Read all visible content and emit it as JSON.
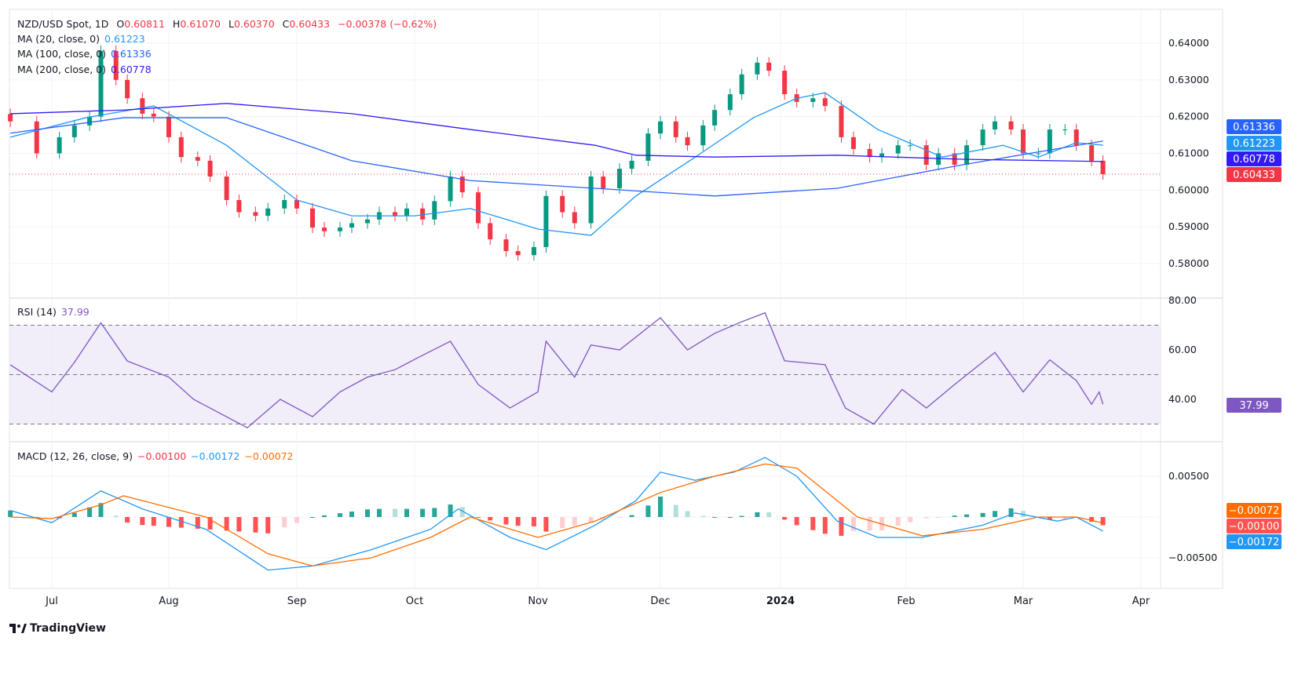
{
  "header": {
    "symbol": "NZD/USD Spot, 1D",
    "open_label": "O",
    "open": "0.60811",
    "high_label": "H",
    "high": "0.61070",
    "low_label": "L",
    "low": "0.60370",
    "close_label": "C",
    "close": "0.60433",
    "change": "−0.00378 (−0.62%)",
    "ma20_label": "MA (20, close, 0)",
    "ma20_value": "0.61223",
    "ma100_label": "MA (100, close, 0)",
    "ma100_value": "0.61336",
    "ma200_label": "MA (200, close, 0)",
    "ma200_value": "0.60778",
    "rsi_label": "RSI (14)",
    "rsi_value": "37.99",
    "macd_label": "MACD (12, 26, close, 9)",
    "macd_hist": "−0.00100",
    "macd_value": "−0.00172",
    "macd_signal": "−0.00072"
  },
  "logo": "TradingView",
  "colors": {
    "up": "#089981",
    "down": "#f23645",
    "ma20": "#2196f3",
    "ma100": "#2962ff",
    "ma200": "#311bf5",
    "rsi": "#7e57c2",
    "macd": "#2196f3",
    "signal": "#ff6d00"
  },
  "chart_data": [
    {
      "type": "candlestick",
      "pane": "price",
      "ylim": [
        0.575,
        0.642
      ],
      "y_ticks": [
        "0.64000",
        "0.63000",
        "0.62000",
        "0.61000",
        "0.60000",
        "0.59000",
        "0.58000"
      ],
      "x_ticks": [
        "Jul",
        "Aug",
        "Sep",
        "Oct",
        "Nov",
        "Dec",
        "2024",
        "Feb",
        "Mar",
        "Apr"
      ],
      "last_price_labels": [
        "0.61336",
        "0.61223",
        "0.60778",
        "0.60433"
      ],
      "closes": [
        [
          "2023-06-20",
          0.6187
        ],
        [
          "2023-06-27",
          0.61
        ],
        [
          "2023-07-03",
          0.6144
        ],
        [
          "2023-07-07",
          0.6176
        ],
        [
          "2023-07-11",
          0.62
        ],
        [
          "2023-07-14",
          0.6379
        ],
        [
          "2023-07-18",
          0.63
        ],
        [
          "2023-07-21",
          0.625
        ],
        [
          "2023-07-25",
          0.6208
        ],
        [
          "2023-07-28",
          0.62
        ],
        [
          "2023-08-01",
          0.6144
        ],
        [
          "2023-08-04",
          0.609
        ],
        [
          "2023-08-08",
          0.608
        ],
        [
          "2023-08-11",
          0.6037
        ],
        [
          "2023-08-15",
          0.5973
        ],
        [
          "2023-08-18",
          0.594
        ],
        [
          "2023-08-22",
          0.593
        ],
        [
          "2023-08-25",
          0.595
        ],
        [
          "2023-08-29",
          0.5973
        ],
        [
          "2023-09-01",
          0.595
        ],
        [
          "2023-09-05",
          0.5898
        ],
        [
          "2023-09-08",
          0.5888
        ],
        [
          "2023-09-12",
          0.5898
        ],
        [
          "2023-09-15",
          0.591
        ],
        [
          "2023-09-19",
          0.592
        ],
        [
          "2023-09-22",
          0.594
        ],
        [
          "2023-09-26",
          0.593
        ],
        [
          "2023-09-29",
          0.595
        ],
        [
          "2023-10-03",
          0.592
        ],
        [
          "2023-10-06",
          0.597
        ],
        [
          "2023-10-10",
          0.6037
        ],
        [
          "2023-10-13",
          0.5994
        ],
        [
          "2023-10-17",
          0.591
        ],
        [
          "2023-10-20",
          0.5866
        ],
        [
          "2023-10-24",
          0.5834
        ],
        [
          "2023-10-27",
          0.5823
        ],
        [
          "2023-10-31",
          0.5845
        ],
        [
          "2023-11-03",
          0.5984
        ],
        [
          "2023-11-07",
          0.594
        ],
        [
          "2023-11-10",
          0.591
        ],
        [
          "2023-11-14",
          0.6037
        ],
        [
          "2023-11-17",
          0.6005
        ],
        [
          "2023-11-21",
          0.6058
        ],
        [
          "2023-11-24",
          0.608
        ],
        [
          "2023-11-28",
          0.6154
        ],
        [
          "2023-12-01",
          0.6187
        ],
        [
          "2023-12-05",
          0.6144
        ],
        [
          "2023-12-08",
          0.6122
        ],
        [
          "2023-12-12",
          0.6176
        ],
        [
          "2023-12-15",
          0.6218
        ],
        [
          "2023-12-19",
          0.6261
        ],
        [
          "2023-12-22",
          0.6315
        ],
        [
          "2023-12-26",
          0.6347
        ],
        [
          "2023-12-29",
          0.6325
        ],
        [
          "2024-01-02",
          0.6261
        ],
        [
          "2024-01-05",
          0.624
        ],
        [
          "2024-01-09",
          0.625
        ],
        [
          "2024-01-12",
          0.6229
        ],
        [
          "2024-01-16",
          0.6144
        ],
        [
          "2024-01-19",
          0.6112
        ],
        [
          "2024-01-23",
          0.609
        ],
        [
          "2024-01-26",
          0.61
        ],
        [
          "2024-01-30",
          0.6122
        ],
        [
          "2024-02-02",
          0.6122
        ],
        [
          "2024-02-06",
          0.6069
        ],
        [
          "2024-02-09",
          0.61
        ],
        [
          "2024-02-13",
          0.6069
        ],
        [
          "2024-02-16",
          0.6122
        ],
        [
          "2024-02-20",
          0.6165
        ],
        [
          "2024-02-23",
          0.6187
        ],
        [
          "2024-02-27",
          0.6165
        ],
        [
          "2024-03-01",
          0.61
        ],
        [
          "2024-03-05",
          0.61
        ],
        [
          "2024-03-08",
          0.6165
        ],
        [
          "2024-03-12",
          0.6165
        ],
        [
          "2024-03-15",
          0.6122
        ],
        [
          "2024-03-19",
          0.608
        ],
        [
          "2024-03-22",
          0.60433
        ]
      ],
      "series": [
        {
          "name": "MA (20, close, 0)",
          "points": [
            [
              "2023-06-20",
              0.6144
            ],
            [
              "2023-07-10",
              0.6197
            ],
            [
              "2023-07-28",
              0.6229
            ],
            [
              "2023-08-15",
              0.6122
            ],
            [
              "2023-09-01",
              0.5973
            ],
            [
              "2023-09-15",
              0.593
            ],
            [
              "2023-10-01",
              0.593
            ],
            [
              "2023-10-15",
              0.595
            ],
            [
              "2023-11-01",
              0.5894
            ],
            [
              "2023-11-14",
              0.5877
            ],
            [
              "2023-11-25",
              0.5984
            ],
            [
              "2023-12-10",
              0.609
            ],
            [
              "2023-12-25",
              0.6197
            ],
            [
              "2024-01-05",
              0.625
            ],
            [
              "2024-01-12",
              0.6265
            ],
            [
              "2024-01-25",
              0.6165
            ],
            [
              "2024-02-10",
              0.609
            ],
            [
              "2024-02-25",
              0.6122
            ],
            [
              "2024-03-05",
              0.609
            ],
            [
              "2024-03-15",
              0.6129
            ],
            [
              "2024-03-22",
              0.61223
            ]
          ]
        },
        {
          "name": "MA (100, close, 0)",
          "points": [
            [
              "2023-06-20",
              0.6155
            ],
            [
              "2023-07-20",
              0.6197
            ],
            [
              "2023-08-15",
              0.6197
            ],
            [
              "2023-09-15",
              0.608
            ],
            [
              "2023-10-15",
              0.6026
            ],
            [
              "2023-11-15",
              0.6005
            ],
            [
              "2023-12-15",
              0.5984
            ],
            [
              "2024-01-15",
              0.6005
            ],
            [
              "2024-02-15",
              0.6069
            ],
            [
              "2024-03-22",
              0.61336
            ]
          ]
        },
        {
          "name": "MA (200, close, 0)",
          "points": [
            [
              "2023-06-20",
              0.6208
            ],
            [
              "2023-07-20",
              0.6218
            ],
            [
              "2023-08-15",
              0.6236
            ],
            [
              "2023-09-15",
              0.6208
            ],
            [
              "2023-10-15",
              0.6165
            ],
            [
              "2023-11-15",
              0.6122
            ],
            [
              "2023-11-25",
              0.6095
            ],
            [
              "2023-12-15",
              0.609
            ],
            [
              "2024-01-15",
              0.6095
            ],
            [
              "2024-02-15",
              0.6084
            ],
            [
              "2024-03-22",
              0.60778
            ]
          ]
        }
      ]
    },
    {
      "type": "line",
      "pane": "rsi",
      "ylim": [
        24,
        83
      ],
      "y_ticks": [
        "80.00",
        "60.00",
        "40.00"
      ],
      "bands": [
        70,
        50,
        30
      ],
      "series": [
        {
          "name": "RSI (14)",
          "points": [
            [
              "2023-06-20",
              54
            ],
            [
              "2023-07-01",
              43
            ],
            [
              "2023-07-07",
              55
            ],
            [
              "2023-07-14",
              71
            ],
            [
              "2023-07-21",
              55.5
            ],
            [
              "2023-08-01",
              49
            ],
            [
              "2023-08-07",
              40
            ],
            [
              "2023-08-20",
              28.5
            ],
            [
              "2023-08-28",
              40
            ],
            [
              "2023-09-05",
              33
            ],
            [
              "2023-09-12",
              43
            ],
            [
              "2023-09-19",
              49
            ],
            [
              "2023-09-26",
              52
            ],
            [
              "2023-10-02",
              57
            ],
            [
              "2023-10-10",
              63.5
            ],
            [
              "2023-10-17",
              46
            ],
            [
              "2023-10-25",
              36.5
            ],
            [
              "2023-11-01",
              43
            ],
            [
              "2023-11-03",
              63.5
            ],
            [
              "2023-11-10",
              49
            ],
            [
              "2023-11-14",
              62
            ],
            [
              "2023-11-21",
              60
            ],
            [
              "2023-12-01",
              73
            ],
            [
              "2023-12-08",
              60
            ],
            [
              "2023-12-15",
              66.7
            ],
            [
              "2023-12-22",
              71.4
            ],
            [
              "2023-12-28",
              75
            ],
            [
              "2024-01-02",
              55.6
            ],
            [
              "2024-01-12",
              54
            ],
            [
              "2024-01-17",
              36.5
            ],
            [
              "2024-01-24",
              30
            ],
            [
              "2024-01-31",
              44
            ],
            [
              "2024-02-06",
              36.5
            ],
            [
              "2024-02-13",
              46
            ],
            [
              "2024-02-23",
              59
            ],
            [
              "2024-03-01",
              43
            ],
            [
              "2024-03-08",
              56
            ],
            [
              "2024-03-15",
              47.6
            ],
            [
              "2024-03-19",
              38
            ],
            [
              "2024-03-21",
              43
            ],
            [
              "2024-03-22",
              37.99
            ]
          ]
        }
      ]
    },
    {
      "type": "line",
      "pane": "macd",
      "ylim": [
        -0.0085,
        0.0095
      ],
      "y_ticks": [
        "0.00500",
        "−0.00500"
      ],
      "series": [
        {
          "name": "MACD",
          "points": [
            [
              "2023-06-20",
              0.0008
            ],
            [
              "2023-07-01",
              -0.0007
            ],
            [
              "2023-07-14",
              0.0032
            ],
            [
              "2023-07-25",
              0.001
            ],
            [
              "2023-08-10",
              -0.0015
            ],
            [
              "2023-08-25",
              -0.0065
            ],
            [
              "2023-09-05",
              -0.006
            ],
            [
              "2023-09-20",
              -0.004
            ],
            [
              "2023-10-05",
              -0.0015
            ],
            [
              "2023-10-12",
              0.001
            ],
            [
              "2023-10-25",
              -0.0025
            ],
            [
              "2023-11-03",
              -0.004
            ],
            [
              "2023-11-15",
              -0.001
            ],
            [
              "2023-11-25",
              0.002
            ],
            [
              "2023-12-01",
              0.0055
            ],
            [
              "2023-12-10",
              0.0045
            ],
            [
              "2023-12-20",
              0.0055
            ],
            [
              "2023-12-28",
              0.0073
            ],
            [
              "2024-01-05",
              0.005
            ],
            [
              "2024-01-15",
              -0.0005
            ],
            [
              "2024-01-25",
              -0.0025
            ],
            [
              "2024-02-05",
              -0.0025
            ],
            [
              "2024-02-20",
              -0.001
            ],
            [
              "2024-02-28",
              0.0005
            ],
            [
              "2024-03-10",
              -0.0005
            ],
            [
              "2024-03-15",
              0
            ],
            [
              "2024-03-22",
              -0.00172
            ]
          ]
        },
        {
          "name": "Signal",
          "points": [
            [
              "2023-06-20",
              0
            ],
            [
              "2023-07-01",
              -0.0002
            ],
            [
              "2023-07-14",
              0.0015
            ],
            [
              "2023-07-20",
              0.0026
            ],
            [
              "2023-08-10",
              0
            ],
            [
              "2023-08-25",
              -0.0045
            ],
            [
              "2023-09-05",
              -0.006
            ],
            [
              "2023-09-20",
              -0.005
            ],
            [
              "2023-10-05",
              -0.0025
            ],
            [
              "2023-10-15",
              0
            ],
            [
              "2023-11-01",
              -0.0025
            ],
            [
              "2023-11-15",
              -0.0005
            ],
            [
              "2023-12-01",
              0.003
            ],
            [
              "2023-12-15",
              0.005
            ],
            [
              "2023-12-28",
              0.0065
            ],
            [
              "2024-01-05",
              0.006
            ],
            [
              "2024-01-20",
              0
            ],
            [
              "2024-02-05",
              -0.0023
            ],
            [
              "2024-02-20",
              -0.0015
            ],
            [
              "2024-03-05",
              0
            ],
            [
              "2024-03-15",
              0
            ],
            [
              "2024-03-22",
              -0.00072
            ]
          ]
        }
      ],
      "last_value_labels": [
        "−0.00072",
        "−0.00100",
        "−0.00172"
      ]
    }
  ]
}
